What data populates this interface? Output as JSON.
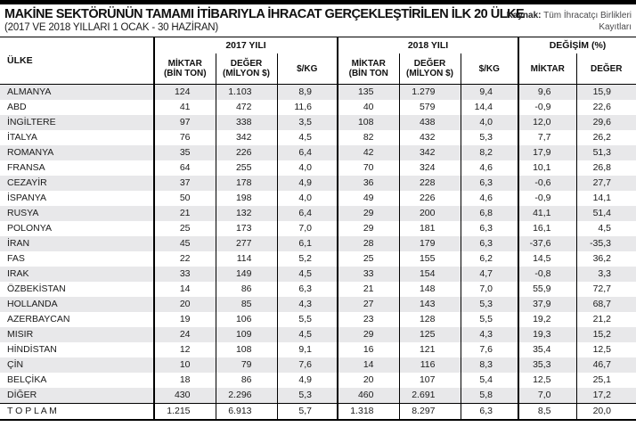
{
  "colors": {
    "top_bar": "#000000",
    "stripe": "#e8e8ea",
    "border": "#000000",
    "title_text": "#101010",
    "source_text": "#4a4a4c"
  },
  "chart_data": {
    "type": "table",
    "title": "MAKİNE SEKTÖRÜNÜN TAMAMI İTİBARIYLA İHRACAT GERÇEKLEŞTİRİLEN İLK 20 ÜLKE",
    "subtitle": "(2017 VE 2018 YILLARI 1 OCAK - 30 HAZİRAN)",
    "source_label": "Kaynak:",
    "source_text": "Tüm İhracatçı Birlikleri Kayıtları",
    "headers": {
      "country": "ÜLKE",
      "group_2017": "2017 YILI",
      "group_2018": "2018 YILI",
      "group_change": "DEĞİŞİM (%)",
      "sub": [
        {
          "l1": "MİKTAR",
          "l2": "(BİN TON)"
        },
        {
          "l1": "DEĞER",
          "l2": "(MİLYON $)"
        },
        {
          "l1": "$/KG",
          "l2": ""
        },
        {
          "l1": "MİKTAR",
          "l2": "(BİN TON"
        },
        {
          "l1": "DEĞER",
          "l2": "(MİLYON $)"
        },
        {
          "l1": "$/KG",
          "l2": ""
        },
        {
          "l1": "MİKTAR",
          "l2": ""
        },
        {
          "l1": "DEĞER",
          "l2": ""
        }
      ]
    },
    "columns": [
      "ÜLKE",
      "2017 MİKTAR (BİN TON)",
      "2017 DEĞER (MİLYON $)",
      "2017 $/KG",
      "2018 MİKTAR (BİN TON)",
      "2018 DEĞER (MİLYON $)",
      "2018 $/KG",
      "DEĞİŞİM MİKTAR (%)",
      "DEĞİŞİM DEĞER (%)"
    ],
    "rows": [
      {
        "country": "ALMANYA",
        "values": [
          "124",
          "1.103",
          "8,9",
          "135",
          "1.279",
          "9,4",
          "9,6",
          "15,9"
        ]
      },
      {
        "country": "ABD",
        "values": [
          "41",
          "472",
          "11,6",
          "40",
          "579",
          "14,4",
          "-0,9",
          "22,6"
        ]
      },
      {
        "country": "İNGİLTERE",
        "values": [
          "97",
          "338",
          "3,5",
          "108",
          "438",
          "4,0",
          "12,0",
          "29,6"
        ]
      },
      {
        "country": "İTALYA",
        "values": [
          "76",
          "342",
          "4,5",
          "82",
          "432",
          "5,3",
          "7,7",
          "26,2"
        ]
      },
      {
        "country": "ROMANYA",
        "values": [
          "35",
          "226",
          "6,4",
          "42",
          "342",
          "8,2",
          "17,9",
          "51,3"
        ]
      },
      {
        "country": "FRANSA",
        "values": [
          "64",
          "255",
          "4,0",
          "70",
          "324",
          "4,6",
          "10,1",
          "26,8"
        ]
      },
      {
        "country": "CEZAYİR",
        "values": [
          "37",
          "178",
          "4,9",
          "36",
          "228",
          "6,3",
          "-0,6",
          "27,7"
        ]
      },
      {
        "country": "İSPANYA",
        "values": [
          "50",
          "198",
          "4,0",
          "49",
          "226",
          "4,6",
          "-0,9",
          "14,1"
        ]
      },
      {
        "country": "RUSYA",
        "values": [
          "21",
          "132",
          "6,4",
          "29",
          "200",
          "6,8",
          "41,1",
          "51,4"
        ]
      },
      {
        "country": "POLONYA",
        "values": [
          "25",
          "173",
          "7,0",
          "29",
          "181",
          "6,3",
          "16,1",
          "4,5"
        ]
      },
      {
        "country": "İRAN",
        "values": [
          "45",
          "277",
          "6,1",
          "28",
          "179",
          "6,3",
          "-37,6",
          "-35,3"
        ]
      },
      {
        "country": "FAS",
        "values": [
          "22",
          "114",
          "5,2",
          "25",
          "155",
          "6,2",
          "14,5",
          "36,2"
        ]
      },
      {
        "country": "IRAK",
        "values": [
          "33",
          "149",
          "4,5",
          "33",
          "154",
          "4,7",
          "-0,8",
          "3,3"
        ]
      },
      {
        "country": "ÖZBEKİSTAN",
        "values": [
          "14",
          "86",
          "6,3",
          "21",
          "148",
          "7,0",
          "55,9",
          "72,7"
        ]
      },
      {
        "country": "HOLLANDA",
        "values": [
          "20",
          "85",
          "4,3",
          "27",
          "143",
          "5,3",
          "37,9",
          "68,7"
        ]
      },
      {
        "country": "AZERBAYCAN",
        "values": [
          "19",
          "106",
          "5,5",
          "23",
          "128",
          "5,5",
          "19,2",
          "21,2"
        ]
      },
      {
        "country": "MISIR",
        "values": [
          "24",
          "109",
          "4,5",
          "29",
          "125",
          "4,3",
          "19,3",
          "15,2"
        ]
      },
      {
        "country": "HİNDİSTAN",
        "values": [
          "12",
          "108",
          "9,1",
          "16",
          "121",
          "7,6",
          "35,4",
          "12,5"
        ]
      },
      {
        "country": "ÇİN",
        "values": [
          "10",
          "79",
          "7,6",
          "14",
          "116",
          "8,3",
          "35,3",
          "46,7"
        ]
      },
      {
        "country": "BELÇİKA",
        "values": [
          "18",
          "86",
          "4,9",
          "20",
          "107",
          "5,4",
          "12,5",
          "25,1"
        ]
      },
      {
        "country": "DİĞER",
        "values": [
          "430",
          "2.296",
          "5,3",
          "460",
          "2.691",
          "5,8",
          "7,0",
          "17,2"
        ]
      }
    ],
    "total_row": {
      "country": "T O P L A M",
      "values": [
        "1.215",
        "6.913",
        "5,7",
        "1.318",
        "8.297",
        "6,3",
        "8,5",
        "20,0"
      ]
    }
  }
}
